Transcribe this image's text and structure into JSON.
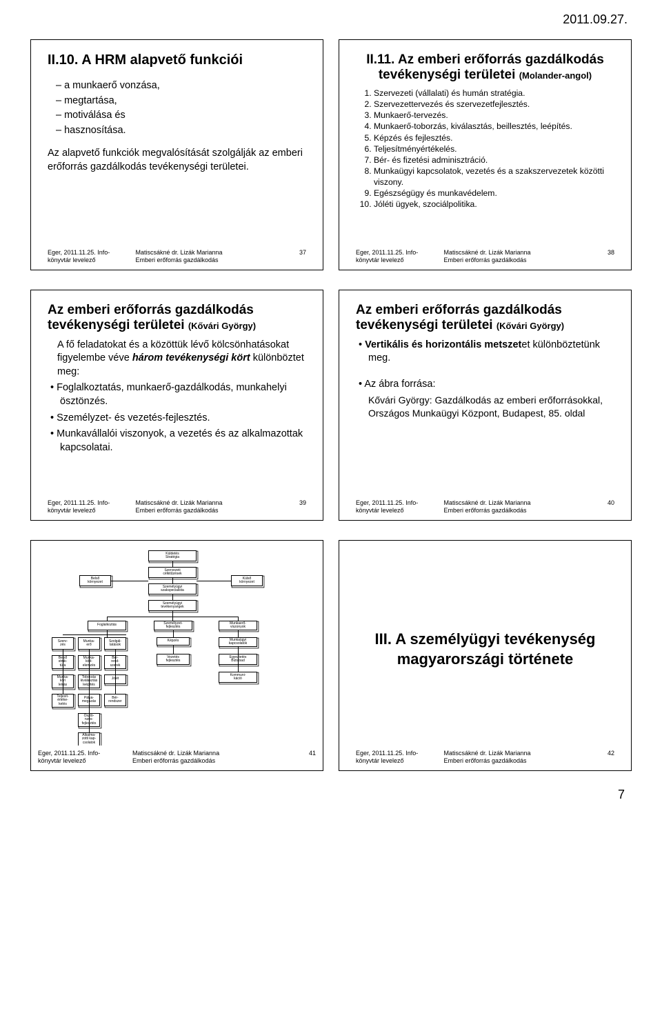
{
  "page_header_date": "2011.09.27.",
  "page_number": "7",
  "footer": {
    "left_line1": "Eger, 2011.11.25. Info-",
    "left_line2": "könyvtár levelező",
    "mid_line1": "Matiscsákné dr. Lizák Marianna",
    "mid_line2": "Emberi erőforrás gazdálkodás"
  },
  "slides": {
    "s37": {
      "title": "II.10. A HRM alapvető funkciói",
      "items": [
        "a munkaerő vonzása,",
        "megtartása,",
        "motiválása és",
        "hasznosítása."
      ],
      "para": "Az alapvető funkciók megvalósítását szolgálják az emberi erőforrás gazdálkodás tevékenységi területei.",
      "num": "37"
    },
    "s38": {
      "title_a": "II.11. Az emberi erőforrás gazdálkodás tevékenységi területei ",
      "title_b": "(Molander-angol)",
      "items": [
        "Szervezeti (vállalati) és humán stratégia.",
        "Szervezettervezés és szervezetfejlesztés.",
        "Munkaerő-tervezés.",
        "Munkaerő-toborzás, kiválasztás, beillesztés, leépítés.",
        "Képzés és fejlesztés.",
        "Teljesítményértékelés.",
        "Bér- és fizetési adminisztráció.",
        "Munkaügyi kapcsolatok, vezetés és a szakszervezetek közötti viszony.",
        "Egészségügy és munkavédelem.",
        "Jóléti ügyek, szociálpolitika."
      ],
      "num": "38"
    },
    "s39": {
      "title_a": "Az emberi erőforrás gazdálkodás tevékenységi területei ",
      "title_b": "(Kővári György)",
      "intro_a": "A fő feladatokat és a közöttük lévő kölcsönhatásokat figyelembe véve ",
      "intro_b": "három tevékenységi kört",
      "intro_c": " különböztet meg:",
      "items": [
        "Foglalkoztatás, munkaerő-gazdálkodás, munkahelyi ösztönzés.",
        "Személyzet- és vezetés-fejlesztés.",
        "Munkavállalói viszonyok, a vezetés és az alkalmazottak kapcsolatai."
      ],
      "num": "39"
    },
    "s40": {
      "title_a": "Az emberi erőforrás gazdálkodás tevékenységi területei ",
      "title_b": "(Kővári György)",
      "b1a": "Vertikális és horizontális metszet",
      "b1b": "et különböztetünk meg.",
      "b2": "Az ábra forrása:",
      "src": "Kővári György: Gazdálkodás az emberi erőforrásokkal, Országos Munkaügyi Központ, Budapest, 85. oldal",
      "num": "40"
    },
    "s41": {
      "num": "41",
      "boxes": {
        "top1": "Küldetés\nStratégia",
        "top2": "Szervezeti\ncélkitűzések",
        "top3": "Személyügyi\nszakspecialista",
        "top4": "Személyügyi\ntevékenységek",
        "left_out": "Belső\nkörnyezet",
        "right_out": "Külső\nkörnyezet",
        "c1": "Foglalkoztás",
        "c2": "Személyzet-\nfejlesztés",
        "c3": "Munkaerő-\nviszonyok",
        "r1a": "Szerv-\nzés",
        "r1b": "Munka-\nerő",
        "r1c": "Szolgál-\ntatások",
        "r1d": "Képzés",
        "r1e": "Munkaügyi\nkapcsolatok",
        "r2a": "Belső\nstruk-\ntúra",
        "r2b": "Munka-\nköd-\nelemzés",
        "r2c": "Bér-\nrend-\nszerek",
        "r2d": "Vezetés\nfejlesztés",
        "r2e": "Egyeztetés\nBiztabad",
        "r3a": "Munka-\nköri\nleírás",
        "r3b": "Toborzás\nkiválasztás\nleépítés",
        "r3c": "Jólét",
        "r3e": "Kommuni-\nkáció",
        "r4a": "Teljesít-\nértéke-\nkelés",
        "r4b": "Pálya-\nmegazás",
        "r4c": "Bér-\nrendszer",
        "r5b": "Ösztö-\nnzés-\nfejlesztés",
        "r6b": "Alkalma-\nzotti kap-\ncsolatok"
      }
    },
    "s42": {
      "title": "III. A személyügyi tevékenység magyarországi története",
      "num": "42"
    }
  }
}
